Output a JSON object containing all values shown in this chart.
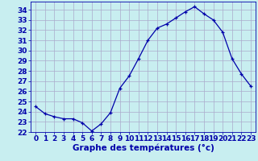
{
  "x": [
    0,
    1,
    2,
    3,
    4,
    5,
    6,
    7,
    8,
    9,
    10,
    11,
    12,
    13,
    14,
    15,
    16,
    17,
    18,
    19,
    20,
    21,
    22,
    23
  ],
  "y": [
    24.5,
    23.8,
    23.5,
    23.3,
    23.3,
    22.9,
    22.1,
    22.8,
    23.9,
    26.3,
    27.5,
    29.2,
    31.0,
    32.2,
    32.6,
    33.2,
    33.8,
    34.3,
    33.6,
    33.0,
    31.8,
    29.2,
    27.7,
    26.5
  ],
  "xlim": [
    -0.5,
    23.5
  ],
  "ylim": [
    22,
    34.8
  ],
  "yticks": [
    22,
    23,
    24,
    25,
    26,
    27,
    28,
    29,
    30,
    31,
    32,
    33,
    34
  ],
  "xticks": [
    0,
    1,
    2,
    3,
    4,
    5,
    6,
    7,
    8,
    9,
    10,
    11,
    12,
    13,
    14,
    15,
    16,
    17,
    18,
    19,
    20,
    21,
    22,
    23
  ],
  "xlabel": "Graphe des températures (°c)",
  "line_color": "#0000aa",
  "marker": "+",
  "marker_color": "#0000aa",
  "bg_color": "#c8eef0",
  "grid_color": "#aaaacc",
  "label_color": "#0000aa",
  "tick_fontsize": 6.5,
  "xlabel_fontsize": 7.5,
  "figwidth": 3.2,
  "figheight": 2.0,
  "dpi": 100
}
